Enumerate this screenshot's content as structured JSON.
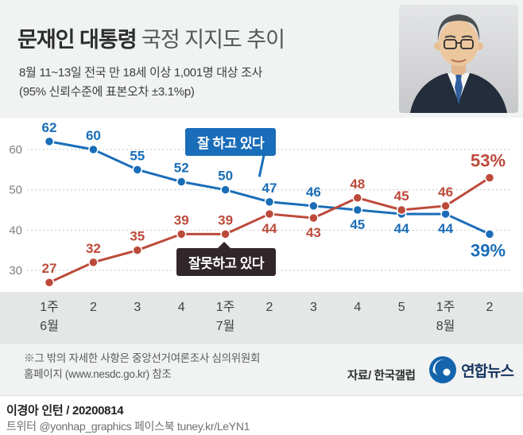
{
  "header": {
    "title_bold": "문재인 대통령",
    "title_rest": " 국정 지지도 추이",
    "subtitle1": "8월 11~13일 전국 만 18세 이상 1,001명 대상 조사",
    "subtitle2": "(95% 신뢰수준에 표본오차 ±3.1%p)"
  },
  "chart_data": {
    "type": "line",
    "x_tick_labels": [
      "1주",
      "2",
      "3",
      "4",
      "1주",
      "2",
      "3",
      "4",
      "5",
      "1주",
      "2"
    ],
    "month_labels": [
      {
        "index": 0,
        "label": "6월"
      },
      {
        "index": 4,
        "label": "7월"
      },
      {
        "index": 9,
        "label": "8월"
      }
    ],
    "y_ticks": [
      30,
      40,
      50,
      60
    ],
    "ylim": [
      24,
      66
    ],
    "grid": true,
    "series": [
      {
        "name": "잘 하고 있다",
        "color": "#1a6db8",
        "values": [
          62,
          60,
          55,
          52,
          50,
          47,
          46,
          45,
          44,
          44,
          39
        ],
        "value_labels": [
          "62",
          "60",
          "55",
          "52",
          "50",
          "47",
          "46",
          "45",
          "44",
          "44",
          "39%"
        ],
        "labels_above": [
          true,
          true,
          true,
          true,
          true,
          true,
          true,
          false,
          false,
          false,
          false
        ]
      },
      {
        "name": "잘못하고 있다",
        "color": "#bc4a3a",
        "values": [
          27,
          32,
          35,
          39,
          39,
          44,
          43,
          48,
          45,
          46,
          53
        ],
        "value_labels": [
          "27",
          "32",
          "35",
          "39",
          "39",
          "44",
          "43",
          "48",
          "45",
          "46",
          "53%"
        ],
        "labels_above": [
          true,
          true,
          true,
          true,
          true,
          false,
          false,
          true,
          true,
          true,
          true
        ]
      }
    ]
  },
  "footer": {
    "note_line1": "※그 밖의 자세한 사항은 중앙선거여론조사 심의위원회",
    "note_line2": "홈페이지 (www.nesdc.go.kr) 참조",
    "source": "자료/ 한국갤럽",
    "logo_text": "연합뉴스",
    "logo_color": "#1464ad"
  },
  "credits": {
    "line1": "이경아 인턴 / 20200814",
    "line2": "트위터 @yonhap_graphics 페이스북 tuney.kr/LeYN1"
  }
}
